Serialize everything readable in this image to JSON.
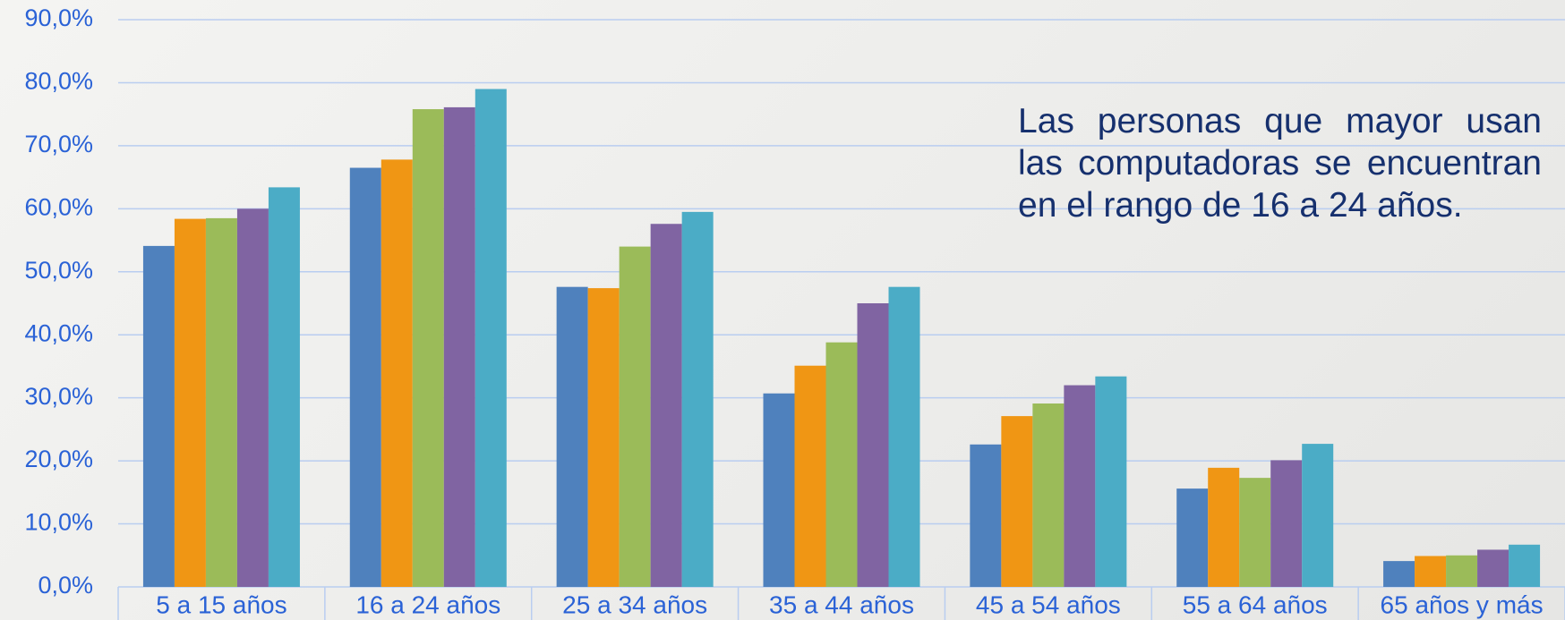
{
  "chart_data": {
    "type": "bar",
    "categories": [
      "5 a 15 años",
      "16 a 24 años",
      "25 a 34 años",
      "35 a 44 años",
      "45 a 54 años",
      "55 a 64 años",
      "65 años y más"
    ],
    "series": [
      {
        "color": "#4f81bd",
        "values": [
          54.1,
          66.5,
          47.6,
          30.7,
          22.6,
          15.6,
          4.1
        ]
      },
      {
        "color": "#f09614",
        "values": [
          58.4,
          67.8,
          47.4,
          35.1,
          27.1,
          18.9,
          4.9
        ]
      },
      {
        "color": "#9bbb59",
        "values": [
          58.5,
          75.8,
          54.0,
          38.8,
          29.1,
          17.3,
          5.0
        ]
      },
      {
        "color": "#8064a2",
        "values": [
          60.0,
          76.1,
          57.6,
          45.0,
          32.0,
          20.1,
          5.9
        ]
      },
      {
        "color": "#4bacc6",
        "values": [
          63.4,
          79.0,
          59.5,
          47.6,
          33.4,
          22.7,
          6.7
        ]
      }
    ],
    "ylim": [
      0,
      90
    ],
    "yticks": [
      {
        "value": 0,
        "label": "0,0%"
      },
      {
        "value": 10,
        "label": "10,0%"
      },
      {
        "value": 20,
        "label": "20,0%"
      },
      {
        "value": 30,
        "label": "30,0%"
      },
      {
        "value": 40,
        "label": "40,0%"
      },
      {
        "value": 50,
        "label": "50,0%"
      },
      {
        "value": 60,
        "label": "60,0%"
      },
      {
        "value": 70,
        "label": "70,0%"
      },
      {
        "value": 80,
        "label": "80,0%"
      },
      {
        "value": 90,
        "label": "90,0%"
      }
    ],
    "grid": true,
    "annotation": "Las personas que mayor usan las computadoras se encuentran en el rango de 16 a 24 años."
  }
}
